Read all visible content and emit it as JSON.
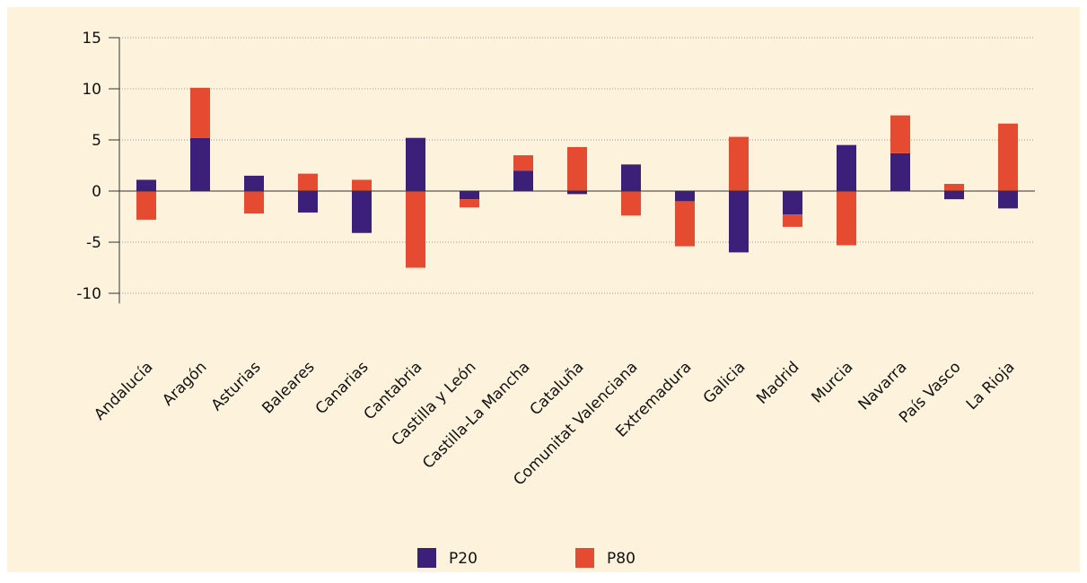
{
  "chart_data": {
    "type": "bar",
    "stacked": true,
    "categories": [
      "Andalucía",
      "Aragón",
      "Asturias",
      "Baleares",
      "Canarias",
      "Cantabria",
      "Castilla y León",
      "Castilla-La Mancha",
      "Cataluña",
      "Comunitat Valenciana",
      "Extremadura",
      "Galicia",
      "Madrid",
      "Murcia",
      "Navarra",
      "País Vasco",
      "La Rioja"
    ],
    "series": [
      {
        "name": "P20",
        "color": "#3b1f78",
        "values": [
          1.1,
          5.2,
          1.5,
          -2.1,
          -4.1,
          5.2,
          -0.8,
          2.0,
          -0.3,
          2.6,
          -1.0,
          -6.0,
          -2.3,
          4.5,
          3.7,
          -0.8,
          -1.7
        ]
      },
      {
        "name": "P80",
        "color": "#e44b30",
        "values": [
          -2.8,
          4.9,
          -2.2,
          1.7,
          1.1,
          -7.5,
          -0.8,
          1.5,
          4.3,
          -2.4,
          -4.4,
          5.3,
          -1.2,
          -5.3,
          3.7,
          0.7,
          6.6
        ]
      }
    ],
    "ylim": [
      -11,
      15
    ],
    "yticks": [
      -10,
      -5,
      0,
      5,
      10,
      15
    ],
    "grid": true,
    "legend": "bottom"
  }
}
